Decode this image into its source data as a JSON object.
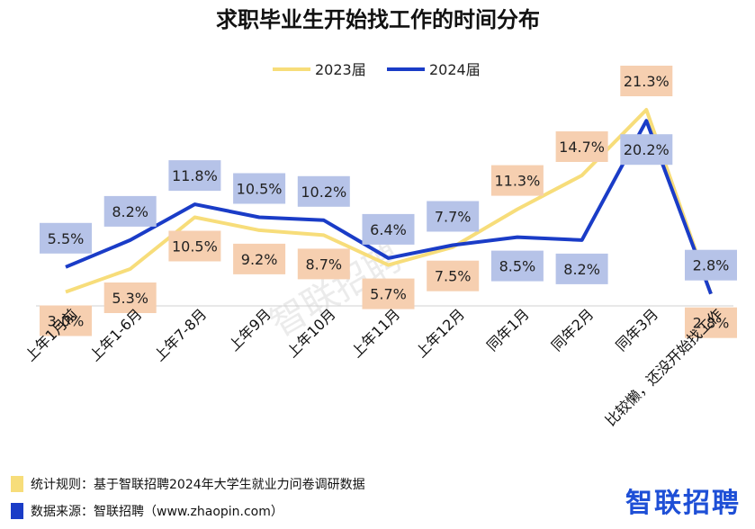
{
  "colors": {
    "series_2023": "#f7dd7a",
    "series_2024": "#1a3cc7",
    "label_2023_bg": "#f6cfb0",
    "label_2024_bg": "#b6c3e8",
    "brand": "#1e4fd6"
  },
  "chart_data": {
    "type": "line",
    "title": "求职毕业生开始找工作的时间分布",
    "categories": [
      "上年1月前",
      "上年1-6月",
      "上年7-8月",
      "上年9月",
      "上年10月",
      "上年11月",
      "上年12月",
      "同年1月",
      "同年2月",
      "同年3月",
      "比较懒，还没开始找工作"
    ],
    "series": [
      {
        "name": "2023届",
        "values": [
          3.0,
          5.3,
          10.5,
          9.2,
          8.7,
          5.7,
          7.5,
          11.3,
          14.7,
          21.3,
          2.8
        ],
        "labels": [
          "3.0%",
          "5.3%",
          "10.5%",
          "9.2%",
          "8.7%",
          "5.7%",
          "7.5%",
          "11.3%",
          "14.7%",
          "21.3%",
          "2.8%"
        ]
      },
      {
        "name": "2024届",
        "values": [
          5.5,
          8.2,
          11.8,
          10.5,
          10.2,
          6.4,
          7.7,
          8.5,
          8.2,
          20.2,
          2.8
        ],
        "labels": [
          "5.5%",
          "8.2%",
          "11.8%",
          "10.5%",
          "10.2%",
          "6.4%",
          "7.7%",
          "8.5%",
          "8.2%",
          "20.2%",
          "2.8%"
        ]
      }
    ],
    "legend": "top-center",
    "grid": false
  },
  "footer": {
    "rule_text": "统计规则：基于智联招聘2024年大学生就业力问卷调研数据",
    "source_text": "数据来源：智联招聘（www.zhaopin.com）"
  },
  "watermark": "智联招聘",
  "brand": "智联招聘"
}
